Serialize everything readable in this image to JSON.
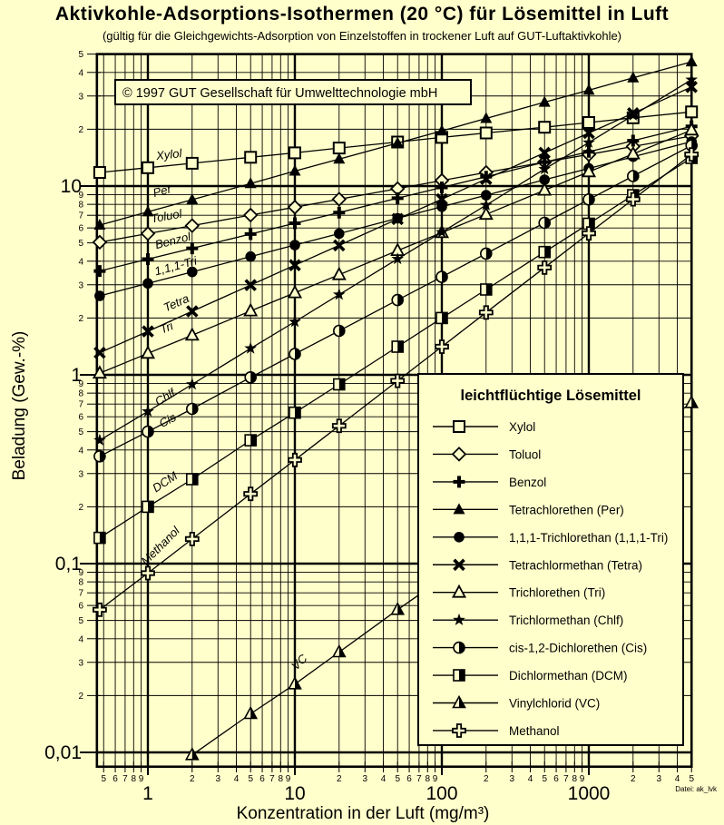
{
  "page": {
    "background": "#ffffcc",
    "ink": "#000000"
  },
  "chart_data": {
    "type": "line",
    "title": "Aktivkohle-Adsorptions-Isothermen (20 °C) für Lösemittel in Luft",
    "subtitle": "(gültig für die Gleichgewichts-Adsorption von Einzelstoffen in trockener Luft auf GUT-Luftaktivkohle)",
    "copyright": "© 1997 GUT Gesellschaft für Umwelttechnologie mbH",
    "file_note": "Datei: ak_lvk",
    "xlabel": "Konzentration in der Luft (mg/m³)",
    "ylabel": "Beladung (Gew.-%)",
    "x_scale": "log",
    "y_scale": "log",
    "x_range": [
      0.45,
      5000
    ],
    "y_range": [
      0.0084,
      50
    ],
    "grid": true,
    "legend_title": "leichtflüchtige Lösemittel",
    "x_ticks_major": [
      {
        "v": 1,
        "label": "1"
      },
      {
        "v": 10,
        "label": "10"
      },
      {
        "v": 100,
        "label": "100"
      },
      {
        "v": 1000,
        "label": "1000"
      }
    ],
    "x_ticks_minor": [
      {
        "v": 0.5,
        "label": "5"
      },
      {
        "v": 0.6,
        "label": "6"
      },
      {
        "v": 0.7,
        "label": "7"
      },
      {
        "v": 0.8,
        "label": "8"
      },
      {
        "v": 0.9,
        "label": "9"
      },
      {
        "v": 2,
        "label": "2"
      },
      {
        "v": 3,
        "label": "3"
      },
      {
        "v": 4,
        "label": "4"
      },
      {
        "v": 5,
        "label": "5"
      },
      {
        "v": 6,
        "label": "6"
      },
      {
        "v": 7,
        "label": "7"
      },
      {
        "v": 8,
        "label": "8"
      },
      {
        "v": 9,
        "label": "9"
      },
      {
        "v": 20,
        "label": "2"
      },
      {
        "v": 30,
        "label": "3"
      },
      {
        "v": 40,
        "label": "4"
      },
      {
        "v": 50,
        "label": "5"
      },
      {
        "v": 60,
        "label": "6"
      },
      {
        "v": 70,
        "label": "7"
      },
      {
        "v": 80,
        "label": "8"
      },
      {
        "v": 90,
        "label": "9"
      },
      {
        "v": 200,
        "label": "2"
      },
      {
        "v": 300,
        "label": "3"
      },
      {
        "v": 400,
        "label": "4"
      },
      {
        "v": 500,
        "label": "5"
      },
      {
        "v": 600,
        "label": "6"
      },
      {
        "v": 700,
        "label": "7"
      },
      {
        "v": 800,
        "label": "8"
      },
      {
        "v": 900,
        "label": "9"
      },
      {
        "v": 2000,
        "label": "2"
      },
      {
        "v": 3000,
        "label": "3"
      },
      {
        "v": 4000,
        "label": "4"
      },
      {
        "v": 5000,
        "label": "5"
      }
    ],
    "y_ticks_major": [
      {
        "v": 10,
        "label": "10"
      },
      {
        "v": 1,
        "label": "1"
      },
      {
        "v": 0.1,
        "label": "0,1"
      },
      {
        "v": 0.01,
        "label": "0,01"
      }
    ],
    "y_ticks_minor": [
      {
        "v": 50,
        "label": "5"
      },
      {
        "v": 40,
        "label": "4"
      },
      {
        "v": 30,
        "label": "3"
      },
      {
        "v": 20,
        "label": "2"
      },
      {
        "v": 9,
        "label": "9"
      },
      {
        "v": 8,
        "label": "8"
      },
      {
        "v": 7,
        "label": "7"
      },
      {
        "v": 6,
        "label": "6"
      },
      {
        "v": 5,
        "label": "5"
      },
      {
        "v": 4,
        "label": "4"
      },
      {
        "v": 3,
        "label": "3"
      },
      {
        "v": 2,
        "label": "2"
      },
      {
        "v": 0.9,
        "label": "9"
      },
      {
        "v": 0.8,
        "label": "8"
      },
      {
        "v": 0.7,
        "label": "7"
      },
      {
        "v": 0.6,
        "label": "6"
      },
      {
        "v": 0.5,
        "label": "5"
      },
      {
        "v": 0.4,
        "label": "4"
      },
      {
        "v": 0.3,
        "label": "3"
      },
      {
        "v": 0.2,
        "label": "2"
      },
      {
        "v": 0.09,
        "label": "9"
      },
      {
        "v": 0.08,
        "label": "8"
      },
      {
        "v": 0.07,
        "label": "7"
      },
      {
        "v": 0.06,
        "label": "6"
      },
      {
        "v": 0.05,
        "label": "5"
      },
      {
        "v": 0.04,
        "label": "4"
      },
      {
        "v": 0.03,
        "label": "3"
      },
      {
        "v": 0.02,
        "label": "2"
      }
    ],
    "series": [
      {
        "name": "Xylol",
        "legend_label": "Xylol",
        "marker": "open-square",
        "points": [
          [
            0.47,
            11.8
          ],
          [
            1,
            12.5
          ],
          [
            2,
            13.2
          ],
          [
            5,
            14.2
          ],
          [
            10,
            15.0
          ],
          [
            20,
            15.9
          ],
          [
            50,
            17.1
          ],
          [
            100,
            18.1
          ],
          [
            200,
            19.1
          ],
          [
            500,
            20.5
          ],
          [
            1000,
            21.7
          ],
          [
            2000,
            23.0
          ],
          [
            5000,
            24.7
          ]
        ],
        "annotation": {
          "text": "Xylol",
          "x": 1.4,
          "y": 14.0,
          "rot": -6
        }
      },
      {
        "name": "Toluol",
        "legend_label": "Toluol",
        "marker": "open-diamond",
        "points": [
          [
            0.47,
            5.04
          ],
          [
            1,
            5.6
          ],
          [
            2,
            6.17
          ],
          [
            5,
            7.02
          ],
          [
            10,
            7.73
          ],
          [
            20,
            8.52
          ],
          [
            50,
            9.68
          ],
          [
            100,
            10.7
          ],
          [
            200,
            11.8
          ],
          [
            500,
            13.4
          ],
          [
            1000,
            14.7
          ],
          [
            2000,
            16.2
          ],
          [
            5000,
            18.4
          ]
        ],
        "annotation": {
          "text": "Toluol",
          "x": 1.35,
          "y": 6.6,
          "rot": -10
        }
      },
      {
        "name": "Benzol",
        "legend_label": "Benzol",
        "marker": "bold-plus",
        "points": [
          [
            0.47,
            3.55
          ],
          [
            1,
            4.1
          ],
          [
            2,
            4.68
          ],
          [
            5,
            5.57
          ],
          [
            10,
            6.35
          ],
          [
            20,
            7.24
          ],
          [
            50,
            8.62
          ],
          [
            100,
            9.84
          ],
          [
            200,
            11.2
          ],
          [
            500,
            13.4
          ],
          [
            1000,
            15.2
          ],
          [
            2000,
            17.4
          ],
          [
            5000,
            20.7
          ]
        ],
        "annotation": {
          "text": "Benzol",
          "x": 1.5,
          "y": 4.9,
          "rot": -14
        }
      },
      {
        "name": "Tetrachlorethen",
        "legend_label": "Tetrachlorethen (Per)",
        "marker": "filled-triangle",
        "points": [
          [
            0.47,
            6.21
          ],
          [
            1,
            7.3
          ],
          [
            2,
            8.47
          ],
          [
            5,
            10.3
          ],
          [
            10,
            12.0
          ],
          [
            20,
            13.9
          ],
          [
            50,
            16.9
          ],
          [
            100,
            19.6
          ],
          [
            200,
            22.8
          ],
          [
            500,
            27.8
          ],
          [
            1000,
            32.2
          ],
          [
            2000,
            37.4
          ],
          [
            5000,
            45.5
          ]
        ],
        "annotation": {
          "text": "Per",
          "x": 1.27,
          "y": 9.0,
          "rot": -15
        }
      },
      {
        "name": "1,1,1-Trichlorethan",
        "legend_label": "1,1,1-Trichlorethan (1,1,1-Tri)",
        "marker": "filled-circle",
        "points": [
          [
            0.47,
            2.62
          ],
          [
            1,
            3.05
          ],
          [
            2,
            3.51
          ],
          [
            5,
            4.23
          ],
          [
            10,
            4.87
          ],
          [
            20,
            5.6
          ],
          [
            50,
            6.75
          ],
          [
            100,
            7.77
          ],
          [
            200,
            8.94
          ],
          [
            500,
            10.8
          ],
          [
            1000,
            12.4
          ],
          [
            2000,
            14.3
          ],
          [
            5000,
            17.2
          ]
        ],
        "annotation": {
          "text": "1,1,1-Tri",
          "x": 1.57,
          "y": 3.6,
          "rot": -15
        }
      },
      {
        "name": "Tetrachlormethan",
        "legend_label": "Tetrachlormethan (Tetra)",
        "marker": "bold-x",
        "points": [
          [
            0.47,
            1.31
          ],
          [
            1,
            1.7
          ],
          [
            2,
            2.17
          ],
          [
            5,
            2.99
          ],
          [
            10,
            3.81
          ],
          [
            20,
            4.85
          ],
          [
            50,
            6.69
          ],
          [
            100,
            8.52
          ],
          [
            200,
            10.9
          ],
          [
            500,
            15.0
          ],
          [
            1000,
            19.1
          ],
          [
            2000,
            24.3
          ],
          [
            5000,
            33.5
          ]
        ],
        "annotation": {
          "text": "Tetra",
          "x": 1.6,
          "y": 2.3,
          "rot": -24
        }
      },
      {
        "name": "Trichlorethen",
        "legend_label": "Trichlorethen (Tri)",
        "marker": "open-triangle",
        "points": [
          [
            0.47,
            1.02
          ],
          [
            1,
            1.3
          ],
          [
            2,
            1.62
          ],
          [
            5,
            2.18
          ],
          [
            10,
            2.72
          ],
          [
            20,
            3.39
          ],
          [
            50,
            4.55
          ],
          [
            100,
            5.67
          ],
          [
            200,
            7.08
          ],
          [
            500,
            9.5
          ],
          [
            1000,
            11.9
          ],
          [
            2000,
            14.8
          ],
          [
            5000,
            19.8
          ]
        ],
        "annotation": {
          "text": "Tri",
          "x": 1.37,
          "y": 1.7,
          "rot": -22
        }
      },
      {
        "name": "Trichlormethan",
        "legend_label": "Trichlormethan (Chlf)",
        "marker": "filled-star",
        "points": [
          [
            0.47,
            0.45
          ],
          [
            1,
            0.64
          ],
          [
            2,
            0.89
          ],
          [
            5,
            1.38
          ],
          [
            10,
            1.91
          ],
          [
            20,
            2.66
          ],
          [
            50,
            4.11
          ],
          [
            100,
            5.7
          ],
          [
            200,
            7.93
          ],
          [
            500,
            12.3
          ],
          [
            1000,
            17.0
          ],
          [
            2000,
            23.7
          ],
          [
            5000,
            36.6
          ]
        ],
        "annotation": {
          "text": "Chlf",
          "x": 1.35,
          "y": 0.73,
          "rot": -31
        }
      },
      {
        "name": "cis-1,2-Dichlorethen",
        "legend_label": "cis-1,2-Dichlorethen (Cis)",
        "marker": "half-circle",
        "points": [
          [
            0.47,
            0.37
          ],
          [
            1,
            0.5
          ],
          [
            2,
            0.66
          ],
          [
            5,
            0.97
          ],
          [
            10,
            1.29
          ],
          [
            20,
            1.71
          ],
          [
            50,
            2.49
          ],
          [
            100,
            3.3
          ],
          [
            200,
            4.39
          ],
          [
            500,
            6.39
          ],
          [
            1000,
            8.49
          ],
          [
            2000,
            11.3
          ],
          [
            5000,
            16.4
          ]
        ],
        "annotation": {
          "text": "Cis",
          "x": 1.4,
          "y": 0.55,
          "rot": -28
        }
      },
      {
        "name": "Dichlormethan",
        "legend_label": "Dichlormethan (DCM)",
        "marker": "half-square",
        "points": [
          [
            0.47,
            0.137
          ],
          [
            1,
            0.2
          ],
          [
            2,
            0.28
          ],
          [
            5,
            0.45
          ],
          [
            10,
            0.63
          ],
          [
            20,
            0.89
          ],
          [
            50,
            1.41
          ],
          [
            100,
            2.0
          ],
          [
            200,
            2.83
          ],
          [
            500,
            4.47
          ],
          [
            1000,
            6.32
          ],
          [
            2000,
            8.94
          ],
          [
            5000,
            14.1
          ]
        ],
        "annotation": {
          "text": "DCM",
          "x": 1.35,
          "y": 0.26,
          "rot": -33
        }
      },
      {
        "name": "Vinylchlorid",
        "legend_label": "Vinylchlorid (VC)",
        "marker": "half-triangle",
        "points": [
          [
            2,
            0.0097
          ],
          [
            5,
            0.016
          ],
          [
            10,
            0.023
          ],
          [
            20,
            0.034
          ],
          [
            50,
            0.057
          ],
          [
            100,
            0.083
          ],
          [
            200,
            0.122
          ],
          [
            500,
            0.2
          ],
          [
            1000,
            0.3
          ],
          [
            2000,
            0.43
          ],
          [
            5000,
            0.71
          ]
        ],
        "annotation": {
          "text": "VC",
          "x": 11.2,
          "y": 0.029,
          "rot": -45
        }
      },
      {
        "name": "Methanol",
        "legend_label": "Methanol",
        "marker": "open-plus",
        "points": [
          [
            0.47,
            0.057
          ],
          [
            1,
            0.089
          ],
          [
            2,
            0.135
          ],
          [
            5,
            0.234
          ],
          [
            10,
            0.354
          ],
          [
            20,
            0.537
          ],
          [
            50,
            0.93
          ],
          [
            100,
            1.41
          ],
          [
            200,
            2.14
          ],
          [
            500,
            3.7
          ],
          [
            1000,
            5.62
          ],
          [
            2000,
            8.51
          ],
          [
            5000,
            14.7
          ]
        ],
        "annotation": {
          "text": "Methanol",
          "x": 1.27,
          "y": 0.12,
          "rot": -45
        }
      }
    ]
  }
}
